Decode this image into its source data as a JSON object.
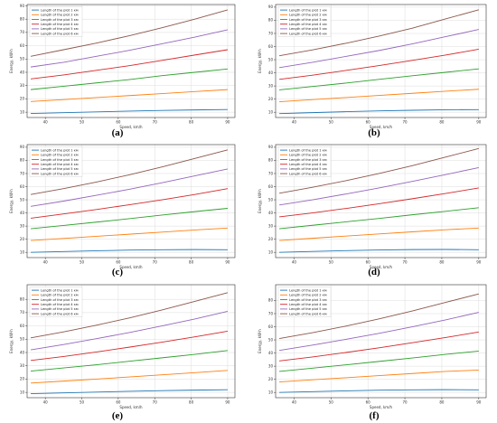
{
  "chart_data": [
    {
      "type": "line",
      "label": "(a)",
      "xlabel": "Speed, km/h",
      "ylabel": "Energy, kW·h",
      "xlim": [
        35,
        92
      ],
      "ylim": [
        6,
        91
      ],
      "xticks": [
        40,
        50,
        60,
        70,
        80,
        90
      ],
      "yticks": [
        10,
        20,
        30,
        40,
        50,
        60,
        70,
        80,
        90
      ],
      "grid": true,
      "legend": "top-left",
      "x": [
        36,
        45,
        54,
        63,
        72,
        81,
        90
      ],
      "series": [
        {
          "name": "Length of the plot 1 км",
          "color": "#1f77b4",
          "values": [
            9,
            9.6,
            10.2,
            10.8,
            11.3,
            11.7,
            12
          ]
        },
        {
          "name": "Length of the plot 2 км",
          "color": "#ff7f0e",
          "values": [
            18,
            19.5,
            21,
            22.5,
            24,
            25.5,
            27
          ]
        },
        {
          "name": "Length of the plot 3 км",
          "color": "#2ca02c",
          "values": [
            27,
            29.5,
            32,
            34.5,
            37.5,
            40,
            42.5
          ]
        },
        {
          "name": "Length of the plot 4 км",
          "color": "#d62728",
          "values": [
            35,
            38,
            41.5,
            45,
            49,
            53,
            57
          ]
        },
        {
          "name": "Length of the plot 5 км",
          "color": "#9467bd",
          "values": [
            44,
            47.5,
            52,
            56.5,
            61.5,
            66.5,
            72
          ]
        },
        {
          "name": "Length of the plot 6 км",
          "color": "#8c564b",
          "values": [
            52,
            57,
            62,
            67.5,
            73.5,
            80,
            87
          ]
        }
      ]
    },
    {
      "type": "line",
      "label": "(b)",
      "xlabel": "Speed, km/h",
      "ylabel": "Energy, kW·h",
      "xlim": [
        35,
        92
      ],
      "ylim": [
        6,
        92
      ],
      "xticks": [
        40,
        50,
        60,
        70,
        80,
        90
      ],
      "yticks": [
        10,
        20,
        30,
        40,
        50,
        60,
        70,
        80,
        90
      ],
      "grid": true,
      "legend": "top-left",
      "x": [
        36,
        45,
        54,
        63,
        72,
        81,
        90
      ],
      "series": [
        {
          "name": "Length of the plot 1 км",
          "color": "#1f77b4",
          "values": [
            9,
            9.7,
            10.4,
            11,
            11.5,
            11.9,
            12
          ]
        },
        {
          "name": "Length of the plot 2 км",
          "color": "#ff7f0e",
          "values": [
            18,
            19.6,
            21.2,
            22.8,
            24.4,
            26,
            27.5
          ]
        },
        {
          "name": "Length of the plot 3 км",
          "color": "#2ca02c",
          "values": [
            27,
            29.6,
            32.2,
            35,
            37.8,
            40.4,
            43
          ]
        },
        {
          "name": "Length of the plot 4 км",
          "color": "#d62728",
          "values": [
            35,
            38.2,
            41.8,
            45.5,
            49.5,
            53.5,
            58
          ]
        },
        {
          "name": "Length of the plot 5 км",
          "color": "#9467bd",
          "values": [
            44,
            48,
            52.5,
            57,
            62,
            67.5,
            73
          ]
        },
        {
          "name": "Length of the plot 6 км",
          "color": "#8c564b",
          "values": [
            53,
            57.5,
            62.5,
            68,
            74,
            81,
            88
          ]
        }
      ]
    },
    {
      "type": "line",
      "label": "(c)",
      "xlabel": "Speed, km/h",
      "ylabel": "Energy, kW·h",
      "xlim": [
        35,
        92
      ],
      "ylim": [
        6,
        92
      ],
      "xticks": [
        40,
        50,
        60,
        70,
        80,
        90
      ],
      "yticks": [
        10,
        20,
        30,
        40,
        50,
        60,
        70,
        80,
        90
      ],
      "grid": true,
      "legend": "top-left",
      "x": [
        36,
        45,
        54,
        63,
        72,
        81,
        90
      ],
      "series": [
        {
          "name": "Length of the plot 1 км",
          "color": "#1f77b4",
          "values": [
            10,
            10.6,
            11.2,
            11.7,
            12,
            12.1,
            12
          ]
        },
        {
          "name": "Length of the plot 2 км",
          "color": "#ff7f0e",
          "values": [
            19,
            20.6,
            22.2,
            23.8,
            25.4,
            27,
            28.5
          ]
        },
        {
          "name": "Length of the plot 3 км",
          "color": "#2ca02c",
          "values": [
            28,
            30.5,
            33,
            35.6,
            38.4,
            41,
            43.5
          ]
        },
        {
          "name": "Length of the plot 4 км",
          "color": "#d62728",
          "values": [
            36,
            39.2,
            42.6,
            46.2,
            50,
            54,
            58.5
          ]
        },
        {
          "name": "Length of the plot 5 км",
          "color": "#9467bd",
          "values": [
            45,
            49,
            53.4,
            58,
            63,
            68.2,
            73.5
          ]
        },
        {
          "name": "Length of the plot 6 км",
          "color": "#8c564b",
          "values": [
            54,
            58.5,
            63.5,
            69,
            75,
            81.5,
            88
          ]
        }
      ]
    },
    {
      "type": "line",
      "label": "(d)",
      "xlabel": "Speed, km/h",
      "ylabel": "Energy, kW·h",
      "xlim": [
        35,
        92
      ],
      "ylim": [
        6,
        92
      ],
      "xticks": [
        40,
        50,
        60,
        70,
        80,
        90
      ],
      "yticks": [
        10,
        20,
        30,
        40,
        50,
        60,
        70,
        80,
        90
      ],
      "grid": true,
      "legend": "top-left",
      "x": [
        36,
        45,
        54,
        63,
        72,
        81,
        90
      ],
      "series": [
        {
          "name": "Length of the plot 1 км",
          "color": "#1f77b4",
          "values": [
            10,
            10.7,
            11.3,
            11.8,
            12.1,
            12.2,
            12
          ]
        },
        {
          "name": "Length of the plot 2 км",
          "color": "#ff7f0e",
          "values": [
            19,
            20.7,
            22.4,
            24,
            25.6,
            27.2,
            28.5
          ]
        },
        {
          "name": "Length of the plot 3 км",
          "color": "#2ca02c",
          "values": [
            28,
            30.6,
            33.2,
            35.8,
            38.6,
            41.2,
            44
          ]
        },
        {
          "name": "Length of the plot 4 км",
          "color": "#d62728",
          "values": [
            37,
            40,
            43.4,
            47,
            50.8,
            54.8,
            59
          ]
        },
        {
          "name": "Length of the plot 5 км",
          "color": "#9467bd",
          "values": [
            46,
            50,
            54.4,
            59,
            64,
            69.2,
            74.5
          ]
        },
        {
          "name": "Length of the plot 6 км",
          "color": "#8c564b",
          "values": [
            55,
            59.5,
            64.5,
            70,
            76,
            82.5,
            89
          ]
        }
      ]
    },
    {
      "type": "line",
      "label": "(e)",
      "xlabel": "Speed, km/h",
      "ylabel": "Energy, kW·h",
      "xlim": [
        35,
        92
      ],
      "ylim": [
        6,
        91
      ],
      "xticks": [
        40,
        50,
        60,
        70,
        80,
        90
      ],
      "yticks": [
        10,
        20,
        30,
        40,
        50,
        60,
        70,
        80
      ],
      "grid": true,
      "legend": "top-left",
      "x": [
        36,
        45,
        54,
        63,
        72,
        81,
        90
      ],
      "series": [
        {
          "name": "Length of the plot 1 км",
          "color": "#1f77b4",
          "values": [
            9,
            9.6,
            10.2,
            10.8,
            11.3,
            11.7,
            12
          ]
        },
        {
          "name": "Length of the plot 2 км",
          "color": "#ff7f0e",
          "values": [
            17,
            18.5,
            20,
            21.6,
            23.2,
            24.8,
            26.5
          ]
        },
        {
          "name": "Length of the plot 3 км",
          "color": "#2ca02c",
          "values": [
            26,
            28.4,
            30.8,
            33.4,
            36,
            38.6,
            41.5
          ]
        },
        {
          "name": "Length of the plot 4 км",
          "color": "#d62728",
          "values": [
            34,
            37,
            40.4,
            44,
            47.8,
            51.8,
            56
          ]
        },
        {
          "name": "Length of the plot 5 км",
          "color": "#9467bd",
          "values": [
            42,
            46,
            50.4,
            55,
            60,
            65.2,
            71
          ]
        },
        {
          "name": "Length of the plot 6 км",
          "color": "#8c564b",
          "values": [
            51,
            55.5,
            60.5,
            66,
            72,
            78.5,
            85
          ]
        }
      ]
    },
    {
      "type": "line",
      "label": "(f)",
      "xlabel": "Speed, km/h",
      "ylabel": "Energy, kW·h",
      "xlim": [
        35,
        92
      ],
      "ylim": [
        6,
        92
      ],
      "xticks": [
        40,
        50,
        60,
        70,
        80,
        90
      ],
      "yticks": [
        10,
        20,
        30,
        40,
        50,
        60,
        70,
        80
      ],
      "grid": true,
      "legend": "top-left",
      "x": [
        36,
        45,
        54,
        63,
        72,
        81,
        90
      ],
      "series": [
        {
          "name": "Length of the plot 1 км",
          "color": "#1f77b4",
          "values": [
            10,
            10.6,
            11.2,
            11.7,
            12,
            12.1,
            12
          ]
        },
        {
          "name": "Length of the plot 2 км",
          "color": "#ff7f0e",
          "values": [
            18,
            19.6,
            21.2,
            22.8,
            24.4,
            26,
            27
          ]
        },
        {
          "name": "Length of the plot 3 км",
          "color": "#2ca02c",
          "values": [
            26,
            28.5,
            31,
            33.6,
            36.2,
            39,
            41.5
          ]
        },
        {
          "name": "Length of the plot 4 км",
          "color": "#d62728",
          "values": [
            34,
            37,
            40.4,
            44,
            47.8,
            51.8,
            56
          ]
        },
        {
          "name": "Length of the plot 5 км",
          "color": "#9467bd",
          "values": [
            42,
            46,
            50.4,
            55,
            60,
            65.2,
            71
          ]
        },
        {
          "name": "Length of the plot 6 км",
          "color": "#8c564b",
          "values": [
            51,
            55.5,
            60.5,
            66,
            72,
            78.5,
            85
          ]
        }
      ]
    }
  ]
}
